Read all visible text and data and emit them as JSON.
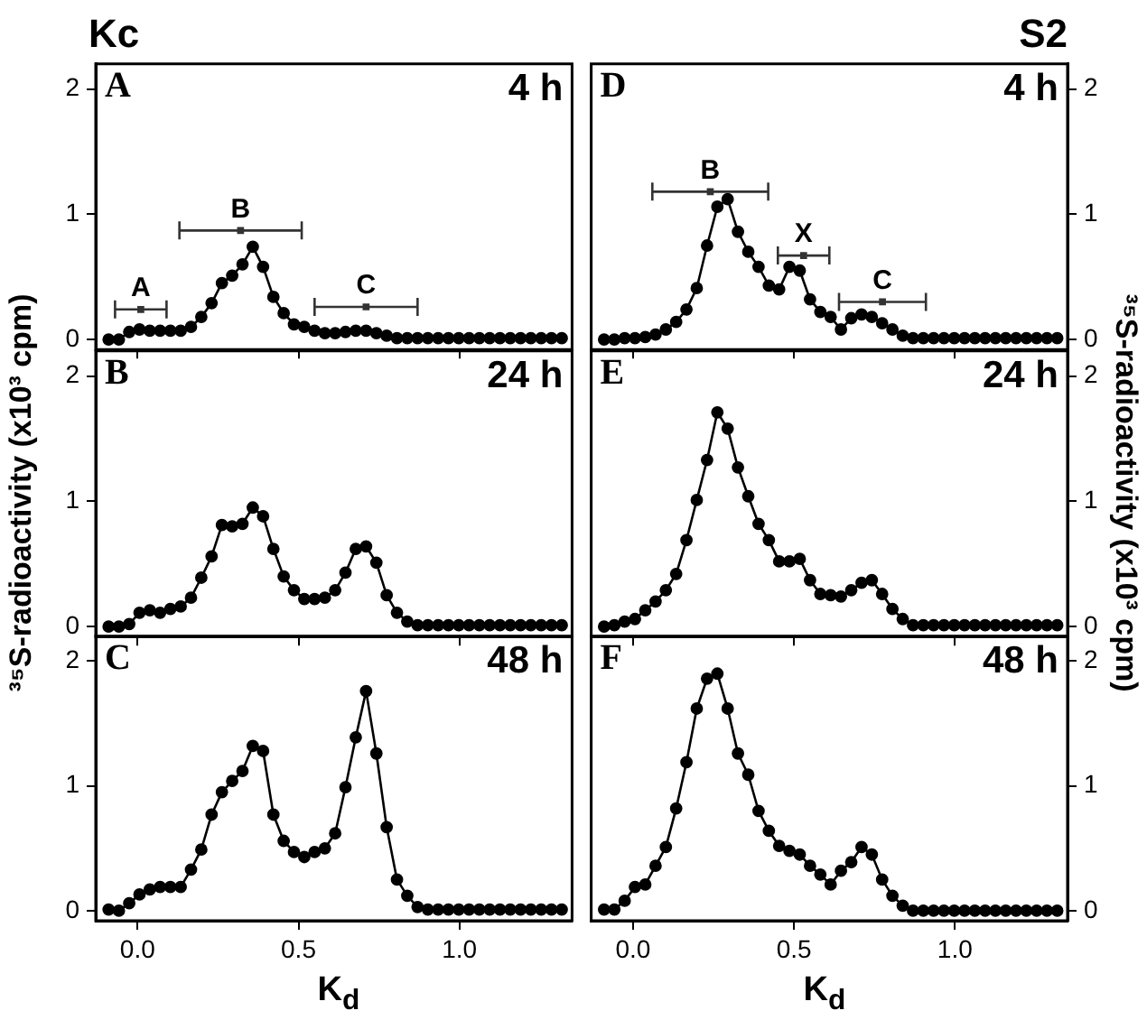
{
  "chart_data": [
    {
      "type": "line",
      "title": "Kc",
      "annotations": [
        "A",
        "4 h",
        {
          "text": "A",
          "x": 0.01,
          "y": 0.24
        },
        {
          "text": "B",
          "x": 0.32,
          "y": 0.87
        },
        {
          "text": "C",
          "x": 0.71,
          "y": 0.26
        }
      ],
      "series": [
        {
          "type": "scatter",
          "marker": "square",
          "color": "#333333",
          "x": [
            0.01,
            0.32,
            0.71
          ],
          "values": [
            0.24,
            0.87,
            0.26
          ],
          "xerrors": [
            [
              -0.07,
              0.09
            ],
            [
              0.13,
              0.51
            ],
            [
              0.55,
              0.87
            ]
          ]
        }
      ],
      "color": "#000000",
      "marker": "circle",
      "tick_labels": "y",
      "x": [
        -0.09,
        -0.058,
        -0.026,
        0.006,
        0.038,
        0.07,
        0.102,
        0.134,
        0.166,
        0.198,
        0.23,
        0.262,
        0.294,
        0.326,
        0.358,
        0.39,
        0.422,
        0.454,
        0.486,
        0.518,
        0.55,
        0.582,
        0.614,
        0.646,
        0.678,
        0.71,
        0.742,
        0.774,
        0.806,
        0.838,
        0.87,
        0.902,
        0.934,
        0.966,
        0.998,
        1.03,
        1.062,
        1.094,
        1.126,
        1.158,
        1.19,
        1.222,
        1.254,
        1.286,
        1.318
      ],
      "values": [
        0,
        0,
        0.06,
        0.08,
        0.07,
        0.07,
        0.07,
        0.07,
        0.1,
        0.18,
        0.29,
        0.45,
        0.51,
        0.6,
        0.74,
        0.58,
        0.34,
        0.21,
        0.12,
        0.1,
        0.07,
        0.05,
        0.05,
        0.06,
        0.07,
        0.07,
        0.05,
        0.03,
        0.01,
        0.01,
        0.01,
        0.01,
        0.01,
        0.01,
        0.01,
        0.01,
        0.01,
        0.01,
        0.01,
        0.01,
        0.01,
        0.01,
        0.01,
        0.01,
        0.01
      ],
      "xlim": [
        -0.13,
        1.35
      ],
      "ylim": [
        -0.08,
        2.2
      ],
      "xticks": [
        {
          "value": 0,
          "label": null
        },
        {
          "value": 0.5,
          "label": null
        },
        {
          "value": 1,
          "label": null
        }
      ],
      "yticks": [
        0,
        1,
        2
      ]
    },
    {
      "type": "line",
      "title": "S2",
      "annotations": [
        "D",
        "4 h",
        {
          "text": "B",
          "x": 0.24,
          "y": 1.18
        },
        {
          "text": "X",
          "x": 0.53,
          "y": 0.67
        },
        {
          "text": "C",
          "x": 0.775,
          "y": 0.3
        }
      ],
      "series": [
        {
          "type": "scatter",
          "marker": "square",
          "color": "#333333",
          "x": [
            0.24,
            0.53,
            0.775
          ],
          "values": [
            1.18,
            0.67,
            0.3
          ],
          "xerrors": [
            [
              0.06,
              0.42
            ],
            [
              0.45,
              0.61
            ],
            [
              0.64,
              0.91
            ]
          ]
        }
      ],
      "color": "#000000",
      "marker": "circle",
      "tick_labels": "y",
      "x": [
        -0.09,
        -0.058,
        -0.026,
        0.006,
        0.038,
        0.07,
        0.102,
        0.134,
        0.166,
        0.198,
        0.23,
        0.262,
        0.294,
        0.326,
        0.358,
        0.39,
        0.422,
        0.454,
        0.486,
        0.518,
        0.55,
        0.582,
        0.614,
        0.646,
        0.678,
        0.71,
        0.742,
        0.774,
        0.806,
        0.838,
        0.87,
        0.902,
        0.934,
        0.966,
        0.998,
        1.03,
        1.062,
        1.094,
        1.126,
        1.158,
        1.19,
        1.222,
        1.254,
        1.286,
        1.318
      ],
      "values": [
        0,
        0,
        0.01,
        0.01,
        0.02,
        0.04,
        0.08,
        0.14,
        0.24,
        0.41,
        0.75,
        1.06,
        1.12,
        0.86,
        0.7,
        0.58,
        0.43,
        0.4,
        0.58,
        0.55,
        0.32,
        0.22,
        0.18,
        0.08,
        0.17,
        0.2,
        0.18,
        0.13,
        0.08,
        0.03,
        0.01,
        0.01,
        0.01,
        0.01,
        0.01,
        0.01,
        0.01,
        0.01,
        0.01,
        0.01,
        0.01,
        0.01,
        0.01,
        0.01,
        0.01
      ],
      "xlim": [
        -0.13,
        1.35
      ],
      "ylim": [
        -0.08,
        2.2
      ],
      "xticks": [
        {
          "value": 0,
          "label": null
        },
        {
          "value": 0.5,
          "label": null
        },
        {
          "value": 1,
          "label": null
        }
      ],
      "yticks": [
        0,
        1,
        2
      ]
    },
    {
      "type": "line",
      "ylabel": "³⁵S-radioactivity (x10³ cpm)",
      "annotations": [
        "B",
        "24 h"
      ],
      "color": "#000000",
      "marker": "circle",
      "tick_labels": "y",
      "x": [
        -0.09,
        -0.058,
        -0.026,
        0.006,
        0.038,
        0.07,
        0.102,
        0.134,
        0.166,
        0.198,
        0.23,
        0.262,
        0.294,
        0.326,
        0.358,
        0.39,
        0.422,
        0.454,
        0.486,
        0.518,
        0.55,
        0.582,
        0.614,
        0.646,
        0.678,
        0.71,
        0.742,
        0.774,
        0.806,
        0.838,
        0.87,
        0.902,
        0.934,
        0.966,
        0.998,
        1.03,
        1.062,
        1.094,
        1.126,
        1.158,
        1.19,
        1.222,
        1.254,
        1.286,
        1.318
      ],
      "values": [
        0,
        0,
        0.02,
        0.11,
        0.13,
        0.11,
        0.14,
        0.16,
        0.23,
        0.39,
        0.56,
        0.81,
        0.8,
        0.82,
        0.95,
        0.88,
        0.62,
        0.4,
        0.29,
        0.22,
        0.22,
        0.23,
        0.29,
        0.43,
        0.62,
        0.64,
        0.51,
        0.25,
        0.11,
        0.04,
        0.01,
        0.01,
        0.01,
        0.01,
        0.01,
        0.01,
        0.01,
        0.01,
        0.01,
        0.01,
        0.01,
        0.01,
        0.01,
        0.01,
        0.01
      ],
      "xlim": [
        -0.13,
        1.35
      ],
      "ylim": [
        -0.08,
        2.2
      ],
      "xticks": [
        {
          "value": 0,
          "label": null
        },
        {
          "value": 0.5,
          "label": null
        },
        {
          "value": 1,
          "label": null
        }
      ],
      "yticks": [
        0,
        1,
        2
      ]
    },
    {
      "type": "line",
      "ylabel": "³⁵S-radioactivity (x10³ cpm)",
      "annotations": [
        "E",
        "24 h"
      ],
      "color": "#000000",
      "marker": "circle",
      "tick_labels": "y",
      "x": [
        -0.09,
        -0.058,
        -0.026,
        0.006,
        0.038,
        0.07,
        0.102,
        0.134,
        0.166,
        0.198,
        0.23,
        0.262,
        0.294,
        0.326,
        0.358,
        0.39,
        0.422,
        0.454,
        0.486,
        0.518,
        0.55,
        0.582,
        0.614,
        0.646,
        0.678,
        0.71,
        0.742,
        0.774,
        0.806,
        0.838,
        0.87,
        0.902,
        0.934,
        0.966,
        0.998,
        1.03,
        1.062,
        1.094,
        1.126,
        1.158,
        1.19,
        1.222,
        1.254,
        1.286,
        1.318
      ],
      "values": [
        0,
        0.01,
        0.04,
        0.06,
        0.13,
        0.2,
        0.29,
        0.42,
        0.69,
        1.01,
        1.33,
        1.71,
        1.58,
        1.27,
        1.04,
        0.82,
        0.69,
        0.52,
        0.52,
        0.54,
        0.37,
        0.26,
        0.25,
        0.24,
        0.29,
        0.35,
        0.37,
        0.26,
        0.14,
        0.06,
        0.01,
        0.01,
        0.01,
        0.01,
        0.01,
        0.01,
        0.01,
        0.01,
        0.01,
        0.01,
        0.01,
        0.01,
        0.01,
        0.01,
        0.01
      ],
      "xlim": [
        -0.13,
        1.35
      ],
      "ylim": [
        -0.08,
        2.2
      ],
      "xticks": [
        {
          "value": 0,
          "label": null
        },
        {
          "value": 0.5,
          "label": null
        },
        {
          "value": 1,
          "label": null
        }
      ],
      "yticks": [
        0,
        1,
        2
      ]
    },
    {
      "type": "line",
      "xlabel": "K$_{d}$",
      "annotations": [
        "C",
        "48 h"
      ],
      "color": "#000000",
      "marker": "circle",
      "x": [
        -0.09,
        -0.058,
        -0.026,
        0.006,
        0.038,
        0.07,
        0.102,
        0.134,
        0.166,
        0.198,
        0.23,
        0.262,
        0.294,
        0.326,
        0.358,
        0.39,
        0.422,
        0.454,
        0.486,
        0.518,
        0.55,
        0.582,
        0.614,
        0.646,
        0.678,
        0.71,
        0.742,
        0.774,
        0.806,
        0.838,
        0.87,
        0.902,
        0.934,
        0.966,
        0.998,
        1.03,
        1.062,
        1.094,
        1.126,
        1.158,
        1.19,
        1.222,
        1.254,
        1.286,
        1.318
      ],
      "values": [
        0.01,
        0,
        0.06,
        0.13,
        0.17,
        0.19,
        0.19,
        0.19,
        0.33,
        0.49,
        0.77,
        0.95,
        1.04,
        1.12,
        1.32,
        1.28,
        0.77,
        0.56,
        0.47,
        0.43,
        0.47,
        0.5,
        0.62,
        0.99,
        1.39,
        1.76,
        1.26,
        0.67,
        0.25,
        0.12,
        0.03,
        0.01,
        0.01,
        0.01,
        0.01,
        0.01,
        0.01,
        0.01,
        0.01,
        0.01,
        0.01,
        0.01,
        0.01,
        0.01,
        0.01
      ],
      "xlim": [
        -0.13,
        1.35
      ],
      "ylim": [
        -0.08,
        2.2
      ],
      "xticks": [
        {
          "value": 0,
          "label": "0.0"
        },
        {
          "value": 0.5,
          "label": "0.5"
        },
        {
          "value": 1,
          "label": "1.0"
        }
      ],
      "yticks": [
        0,
        1,
        2
      ]
    },
    {
      "type": "line",
      "xlabel": "K$_{d}$",
      "annotations": [
        "F",
        "48 h"
      ],
      "color": "#000000",
      "marker": "circle",
      "x": [
        -0.09,
        -0.058,
        -0.026,
        0.006,
        0.038,
        0.07,
        0.102,
        0.134,
        0.166,
        0.198,
        0.23,
        0.262,
        0.294,
        0.326,
        0.358,
        0.39,
        0.422,
        0.454,
        0.486,
        0.518,
        0.55,
        0.582,
        0.614,
        0.646,
        0.678,
        0.71,
        0.742,
        0.774,
        0.806,
        0.838,
        0.87,
        0.902,
        0.934,
        0.966,
        0.998,
        1.03,
        1.062,
        1.094,
        1.126,
        1.158,
        1.19,
        1.222,
        1.254,
        1.286,
        1.318
      ],
      "values": [
        0.01,
        0.01,
        0.08,
        0.19,
        0.21,
        0.36,
        0.51,
        0.82,
        1.19,
        1.62,
        1.86,
        1.9,
        1.62,
        1.26,
        1.09,
        0.8,
        0.64,
        0.52,
        0.48,
        0.45,
        0.36,
        0.29,
        0.21,
        0.32,
        0.39,
        0.51,
        0.45,
        0.25,
        0.12,
        0.04,
        0,
        0,
        0,
        0,
        0,
        0,
        0,
        0,
        0,
        0,
        0,
        0,
        0,
        0,
        0
      ],
      "xlim": [
        -0.13,
        1.35
      ],
      "ylim": [
        -0.08,
        2.2
      ],
      "xticks": [
        {
          "value": 0,
          "label": "0.0"
        },
        {
          "value": 0.5,
          "label": "0.5"
        },
        {
          "value": 1,
          "label": "1.0"
        }
      ],
      "yticks": [
        0,
        1,
        2
      ]
    }
  ]
}
